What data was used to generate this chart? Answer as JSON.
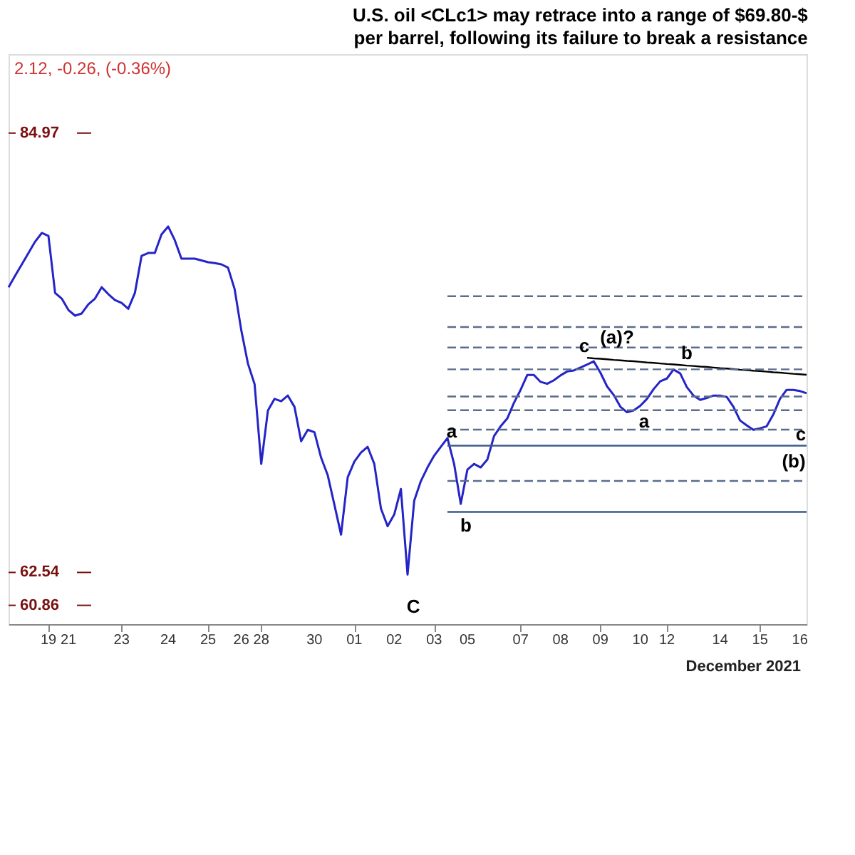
{
  "chart_data": {
    "type": "line",
    "title": "U.S. oil <CLc1> may retrace into a range of $69.80-$",
    "subtitle": "per barrel, following its failure to break a resistance",
    "ylim": [
      59.9,
      89.0
    ],
    "tick_labels": "x",
    "grid": false,
    "marker": "none",
    "categories": [
      null,
      null,
      null,
      null,
      null,
      null,
      "19",
      null,
      null,
      "21",
      null,
      null,
      null,
      null,
      null,
      null,
      null,
      "23",
      null,
      null,
      null,
      null,
      null,
      null,
      "24",
      null,
      null,
      null,
      null,
      null,
      "25",
      null,
      null,
      null,
      null,
      "26",
      null,
      null,
      "28",
      null,
      null,
      null,
      null,
      null,
      null,
      null,
      "30",
      null,
      null,
      null,
      null,
      null,
      "01",
      null,
      null,
      null,
      null,
      null,
      "02",
      null,
      null,
      null,
      null,
      null,
      "03",
      null,
      null,
      null,
      null,
      "05",
      null,
      null,
      null,
      null,
      null,
      null,
      null,
      "07",
      null,
      null,
      null,
      null,
      null,
      "08",
      null,
      null,
      null,
      null,
      null,
      "09",
      null,
      null,
      null,
      null,
      null,
      "10",
      null,
      null,
      null,
      "12",
      null,
      null,
      null,
      null,
      null,
      null,
      null,
      "14",
      null,
      null,
      null,
      null,
      null,
      "15",
      null,
      null,
      null,
      null,
      null,
      "16",
      null
    ],
    "series": [
      {
        "color": "#2424c8",
        "line_style": "solid",
        "values": [
          77.1,
          77.7,
          78.27,
          78.85,
          79.43,
          79.87,
          79.72,
          76.81,
          76.52,
          75.94,
          75.65,
          75.76,
          76.23,
          76.52,
          77.1,
          76.75,
          76.45,
          76.3,
          76.0,
          76.81,
          78.7,
          78.85,
          78.85,
          79.8,
          80.2,
          79.5,
          78.56,
          78.56,
          78.56,
          78.47,
          78.38,
          78.33,
          78.27,
          78.1,
          77.0,
          74.9,
          73.2,
          72.15,
          68.08,
          70.8,
          71.4,
          71.28,
          71.57,
          70.99,
          69.24,
          69.82,
          69.7,
          68.4,
          67.5,
          66.0,
          64.47,
          67.4,
          68.2,
          68.66,
          68.95,
          68.08,
          65.8,
          64.9,
          65.5,
          66.8,
          62.43,
          66.2,
          67.2,
          67.9,
          68.5,
          68.95,
          69.4,
          68.08,
          66.04,
          67.79,
          68.08,
          67.9,
          68.3,
          69.5,
          70.0,
          70.4,
          71.2,
          71.86,
          72.62,
          72.62,
          72.27,
          72.17,
          72.35,
          72.6,
          72.8,
          72.85,
          73.0,
          73.15,
          73.32,
          72.74,
          72.04,
          71.6,
          71.0,
          70.72,
          70.81,
          71.05,
          71.4,
          71.9,
          72.3,
          72.44,
          72.9,
          72.7,
          72.0,
          71.57,
          71.35,
          71.45,
          71.57,
          71.57,
          71.5,
          71.0,
          70.3,
          70.05,
          69.82,
          69.9,
          70.0,
          70.6,
          71.4,
          71.86,
          71.86,
          71.8,
          71.69
        ]
      },
      {
        "color": "#000000",
        "line_style": "solid",
        "values": [
          null,
          null,
          null,
          null,
          null,
          null,
          null,
          null,
          null,
          null,
          null,
          null,
          null,
          null,
          null,
          null,
          null,
          null,
          null,
          null,
          null,
          null,
          null,
          null,
          null,
          null,
          null,
          null,
          null,
          null,
          null,
          null,
          null,
          null,
          null,
          null,
          null,
          null,
          null,
          null,
          null,
          null,
          null,
          null,
          null,
          null,
          null,
          null,
          null,
          null,
          null,
          null,
          null,
          null,
          null,
          null,
          null,
          null,
          null,
          null,
          null,
          null,
          null,
          null,
          null,
          null,
          null,
          null,
          null,
          null,
          null,
          null,
          null,
          null,
          null,
          null,
          null,
          null,
          null,
          null,
          null,
          null,
          null,
          null,
          null,
          null,
          null,
          73.5,
          73.47,
          73.45,
          73.42,
          73.39,
          73.37,
          73.34,
          73.32,
          73.29,
          73.26,
          73.24,
          73.21,
          73.18,
          73.16,
          73.13,
          73.1,
          73.08,
          73.05,
          73.03,
          73.0,
          72.97,
          72.95,
          72.92,
          72.89,
          72.87,
          72.84,
          72.82,
          72.79,
          72.76,
          72.74,
          72.71,
          72.68,
          72.66,
          72.63
        ]
      },
      {
        "color": "#5a6e8c",
        "line_style": "dashed",
        "values": [
          null,
          null,
          null,
          null,
          null,
          null,
          null,
          null,
          null,
          null,
          null,
          null,
          null,
          null,
          null,
          null,
          null,
          null,
          null,
          null,
          null,
          null,
          null,
          null,
          null,
          null,
          null,
          null,
          null,
          null,
          null,
          null,
          null,
          null,
          null,
          null,
          null,
          null,
          null,
          null,
          null,
          null,
          null,
          null,
          null,
          null,
          null,
          null,
          null,
          null,
          null,
          null,
          null,
          null,
          null,
          null,
          null,
          null,
          null,
          null,
          null,
          null,
          null,
          null,
          null,
          null,
          76.64,
          76.64,
          76.64,
          76.64,
          76.64,
          76.64,
          76.64,
          76.64,
          76.64,
          76.64,
          76.64,
          76.64,
          76.64,
          76.64,
          76.64,
          76.64,
          76.64,
          76.64,
          76.64,
          76.64,
          76.64,
          76.64,
          76.64,
          76.64,
          76.64,
          76.64,
          76.64,
          76.64,
          76.64,
          76.64,
          76.64,
          76.64,
          76.64,
          76.64,
          76.64,
          76.64,
          76.64,
          76.64,
          76.64,
          76.64,
          76.64,
          76.64,
          76.64,
          76.64,
          76.64,
          76.64,
          76.64,
          76.64,
          76.64,
          76.64,
          76.64,
          76.64,
          76.64,
          76.64,
          76.64
        ]
      },
      {
        "color": "#5a6e8c",
        "line_style": "dashed",
        "values": [
          null,
          null,
          null,
          null,
          null,
          null,
          null,
          null,
          null,
          null,
          null,
          null,
          null,
          null,
          null,
          null,
          null,
          null,
          null,
          null,
          null,
          null,
          null,
          null,
          null,
          null,
          null,
          null,
          null,
          null,
          null,
          null,
          null,
          null,
          null,
          null,
          null,
          null,
          null,
          null,
          null,
          null,
          null,
          null,
          null,
          null,
          null,
          null,
          null,
          null,
          null,
          null,
          null,
          null,
          null,
          null,
          null,
          null,
          null,
          null,
          null,
          null,
          null,
          null,
          null,
          null,
          75.07,
          75.07,
          75.07,
          75.07,
          75.07,
          75.07,
          75.07,
          75.07,
          75.07,
          75.07,
          75.07,
          75.07,
          75.07,
          75.07,
          75.07,
          75.07,
          75.07,
          75.07,
          75.07,
          75.07,
          75.07,
          75.07,
          75.07,
          75.07,
          75.07,
          75.07,
          75.07,
          75.07,
          75.07,
          75.07,
          75.07,
          75.07,
          75.07,
          75.07,
          75.07,
          75.07,
          75.07,
          75.07,
          75.07,
          75.07,
          75.07,
          75.07,
          75.07,
          75.07,
          75.07,
          75.07,
          75.07,
          75.07,
          75.07,
          75.07,
          75.07,
          75.07,
          75.07,
          75.07,
          75.07
        ]
      },
      {
        "color": "#5a6e8c",
        "line_style": "dashed",
        "values": [
          null,
          null,
          null,
          null,
          null,
          null,
          null,
          null,
          null,
          null,
          null,
          null,
          null,
          null,
          null,
          null,
          null,
          null,
          null,
          null,
          null,
          null,
          null,
          null,
          null,
          null,
          null,
          null,
          null,
          null,
          null,
          null,
          null,
          null,
          null,
          null,
          null,
          null,
          null,
          null,
          null,
          null,
          null,
          null,
          null,
          null,
          null,
          null,
          null,
          null,
          null,
          null,
          null,
          null,
          null,
          null,
          null,
          null,
          null,
          null,
          null,
          null,
          null,
          null,
          null,
          null,
          74.02,
          74.02,
          74.02,
          74.02,
          74.02,
          74.02,
          74.02,
          74.02,
          74.02,
          74.02,
          74.02,
          74.02,
          74.02,
          74.02,
          74.02,
          74.02,
          74.02,
          74.02,
          74.02,
          74.02,
          74.02,
          74.02,
          74.02,
          74.02,
          74.02,
          74.02,
          74.02,
          74.02,
          74.02,
          74.02,
          74.02,
          74.02,
          74.02,
          74.02,
          74.02,
          74.02,
          74.02,
          74.02,
          74.02,
          74.02,
          74.02,
          74.02,
          74.02,
          74.02,
          74.02,
          74.02,
          74.02,
          74.02,
          74.02,
          74.02,
          74.02,
          74.02,
          74.02,
          74.02,
          74.02
        ]
      },
      {
        "color": "#5a6e8c",
        "line_style": "dashed",
        "values": [
          null,
          null,
          null,
          null,
          null,
          null,
          null,
          null,
          null,
          null,
          null,
          null,
          null,
          null,
          null,
          null,
          null,
          null,
          null,
          null,
          null,
          null,
          null,
          null,
          null,
          null,
          null,
          null,
          null,
          null,
          null,
          null,
          null,
          null,
          null,
          null,
          null,
          null,
          null,
          null,
          null,
          null,
          null,
          null,
          null,
          null,
          null,
          null,
          null,
          null,
          null,
          null,
          null,
          null,
          null,
          null,
          null,
          null,
          null,
          null,
          null,
          null,
          null,
          null,
          null,
          null,
          72.91,
          72.91,
          72.91,
          72.91,
          72.91,
          72.91,
          72.91,
          72.91,
          72.91,
          72.91,
          72.91,
          72.91,
          72.91,
          72.91,
          72.91,
          72.91,
          72.91,
          72.91,
          72.91,
          72.91,
          72.91,
          72.91,
          72.91,
          72.91,
          72.91,
          72.91,
          72.91,
          72.91,
          72.91,
          72.91,
          72.91,
          72.91,
          72.91,
          72.91,
          72.91,
          72.91,
          72.91,
          72.91,
          72.91,
          72.91,
          72.91,
          72.91,
          72.91,
          72.91,
          72.91,
          72.91,
          72.91,
          72.91,
          72.91,
          72.91,
          72.91,
          72.91,
          72.91,
          72.91,
          72.91
        ]
      },
      {
        "color": "#5a6e8c",
        "line_style": "dashed",
        "values": [
          null,
          null,
          null,
          null,
          null,
          null,
          null,
          null,
          null,
          null,
          null,
          null,
          null,
          null,
          null,
          null,
          null,
          null,
          null,
          null,
          null,
          null,
          null,
          null,
          null,
          null,
          null,
          null,
          null,
          null,
          null,
          null,
          null,
          null,
          null,
          null,
          null,
          null,
          null,
          null,
          null,
          null,
          null,
          null,
          null,
          null,
          null,
          null,
          null,
          null,
          null,
          null,
          null,
          null,
          null,
          null,
          null,
          null,
          null,
          null,
          null,
          null,
          null,
          null,
          null,
          null,
          71.52,
          71.52,
          71.52,
          71.52,
          71.52,
          71.52,
          71.52,
          71.52,
          71.52,
          71.52,
          71.52,
          71.52,
          71.52,
          71.52,
          71.52,
          71.52,
          71.52,
          71.52,
          71.52,
          71.52,
          71.52,
          71.52,
          71.52,
          71.52,
          71.52,
          71.52,
          71.52,
          71.52,
          71.52,
          71.52,
          71.52,
          71.52,
          71.52,
          71.52,
          71.52,
          71.52,
          71.52,
          71.52,
          71.52,
          71.52,
          71.52,
          71.52,
          71.52,
          71.52,
          71.52,
          71.52,
          71.52,
          71.52,
          71.52,
          71.52,
          71.52,
          71.52,
          71.52,
          71.52,
          71.52
        ]
      },
      {
        "color": "#5a6e8c",
        "line_style": "dashed",
        "values": [
          null,
          null,
          null,
          null,
          null,
          null,
          null,
          null,
          null,
          null,
          null,
          null,
          null,
          null,
          null,
          null,
          null,
          null,
          null,
          null,
          null,
          null,
          null,
          null,
          null,
          null,
          null,
          null,
          null,
          null,
          null,
          null,
          null,
          null,
          null,
          null,
          null,
          null,
          null,
          null,
          null,
          null,
          null,
          null,
          null,
          null,
          null,
          null,
          null,
          null,
          null,
          null,
          null,
          null,
          null,
          null,
          null,
          null,
          null,
          null,
          null,
          null,
          null,
          null,
          null,
          null,
          70.82,
          70.82,
          70.82,
          70.82,
          70.82,
          70.82,
          70.82,
          70.82,
          70.82,
          70.82,
          70.82,
          70.82,
          70.82,
          70.82,
          70.82,
          70.82,
          70.82,
          70.82,
          70.82,
          70.82,
          70.82,
          70.82,
          70.82,
          70.82,
          70.82,
          70.82,
          70.82,
          70.82,
          70.82,
          70.82,
          70.82,
          70.82,
          70.82,
          70.82,
          70.82,
          70.82,
          70.82,
          70.82,
          70.82,
          70.82,
          70.82,
          70.82,
          70.82,
          70.82,
          70.82,
          70.82,
          70.82,
          70.82,
          70.82,
          70.82,
          70.82,
          70.82,
          70.82,
          70.82,
          70.82
        ]
      },
      {
        "color": "#5a6e8c",
        "line_style": "dashed",
        "values": [
          null,
          null,
          null,
          null,
          null,
          null,
          null,
          null,
          null,
          null,
          null,
          null,
          null,
          null,
          null,
          null,
          null,
          null,
          null,
          null,
          null,
          null,
          null,
          null,
          null,
          null,
          null,
          null,
          null,
          null,
          null,
          null,
          null,
          null,
          null,
          null,
          null,
          null,
          null,
          null,
          null,
          null,
          null,
          null,
          null,
          null,
          null,
          null,
          null,
          null,
          null,
          null,
          null,
          null,
          null,
          null,
          null,
          null,
          null,
          null,
          null,
          null,
          null,
          null,
          null,
          null,
          69.83,
          69.83,
          69.83,
          69.83,
          69.83,
          69.83,
          69.83,
          69.83,
          69.83,
          69.83,
          69.83,
          69.83,
          69.83,
          69.83,
          69.83,
          69.83,
          69.83,
          69.83,
          69.83,
          69.83,
          69.83,
          69.83,
          69.83,
          69.83,
          69.83,
          69.83,
          69.83,
          69.83,
          69.83,
          69.83,
          69.83,
          69.83,
          69.83,
          69.83,
          69.83,
          69.83,
          69.83,
          69.83,
          69.83,
          69.83,
          69.83,
          69.83,
          69.83,
          69.83,
          69.83,
          69.83,
          69.83,
          69.83,
          69.83,
          69.83,
          69.83,
          69.83,
          69.83,
          69.83,
          69.83
        ]
      },
      {
        "color": "#3c5a8c",
        "line_style": "solid",
        "values": [
          null,
          null,
          null,
          null,
          null,
          null,
          null,
          null,
          null,
          null,
          null,
          null,
          null,
          null,
          null,
          null,
          null,
          null,
          null,
          null,
          null,
          null,
          null,
          null,
          null,
          null,
          null,
          null,
          null,
          null,
          null,
          null,
          null,
          null,
          null,
          null,
          null,
          null,
          null,
          null,
          null,
          null,
          null,
          null,
          null,
          null,
          null,
          null,
          null,
          null,
          null,
          null,
          null,
          null,
          null,
          null,
          null,
          null,
          null,
          null,
          null,
          null,
          null,
          null,
          null,
          null,
          69.01,
          69.01,
          69.01,
          69.01,
          69.01,
          69.01,
          69.01,
          69.01,
          69.01,
          69.01,
          69.01,
          69.01,
          69.01,
          69.01,
          69.01,
          69.01,
          69.01,
          69.01,
          69.01,
          69.01,
          69.01,
          69.01,
          69.01,
          69.01,
          69.01,
          69.01,
          69.01,
          69.01,
          69.01,
          69.01,
          69.01,
          69.01,
          69.01,
          69.01,
          69.01,
          69.01,
          69.01,
          69.01,
          69.01,
          69.01,
          69.01,
          69.01,
          69.01,
          69.01,
          69.01,
          69.01,
          69.01,
          69.01,
          69.01,
          69.01,
          69.01,
          69.01,
          69.01,
          69.01,
          69.01
        ]
      },
      {
        "color": "#5a6e8c",
        "line_style": "dashed",
        "values": [
          null,
          null,
          null,
          null,
          null,
          null,
          null,
          null,
          null,
          null,
          null,
          null,
          null,
          null,
          null,
          null,
          null,
          null,
          null,
          null,
          null,
          null,
          null,
          null,
          null,
          null,
          null,
          null,
          null,
          null,
          null,
          null,
          null,
          null,
          null,
          null,
          null,
          null,
          null,
          null,
          null,
          null,
          null,
          null,
          null,
          null,
          null,
          null,
          null,
          null,
          null,
          null,
          null,
          null,
          null,
          null,
          null,
          null,
          null,
          null,
          null,
          null,
          null,
          null,
          null,
          null,
          67.21,
          67.21,
          67.21,
          67.21,
          67.21,
          67.21,
          67.21,
          67.21,
          67.21,
          67.21,
          67.21,
          67.21,
          67.21,
          67.21,
          67.21,
          67.21,
          67.21,
          67.21,
          67.21,
          67.21,
          67.21,
          67.21,
          67.21,
          67.21,
          67.21,
          67.21,
          67.21,
          67.21,
          67.21,
          67.21,
          67.21,
          67.21,
          67.21,
          67.21,
          67.21,
          67.21,
          67.21,
          67.21,
          67.21,
          67.21,
          67.21,
          67.21,
          67.21,
          67.21,
          67.21,
          67.21,
          67.21,
          67.21,
          67.21,
          67.21,
          67.21,
          67.21,
          67.21,
          67.21,
          67.21
        ]
      },
      {
        "color": "#3c5a8c",
        "line_style": "solid",
        "values": [
          null,
          null,
          null,
          null,
          null,
          null,
          null,
          null,
          null,
          null,
          null,
          null,
          null,
          null,
          null,
          null,
          null,
          null,
          null,
          null,
          null,
          null,
          null,
          null,
          null,
          null,
          null,
          null,
          null,
          null,
          null,
          null,
          null,
          null,
          null,
          null,
          null,
          null,
          null,
          null,
          null,
          null,
          null,
          null,
          null,
          null,
          null,
          null,
          null,
          null,
          null,
          null,
          null,
          null,
          null,
          null,
          null,
          null,
          null,
          null,
          null,
          null,
          null,
          null,
          null,
          null,
          65.63,
          65.63,
          65.63,
          65.63,
          65.63,
          65.63,
          65.63,
          65.63,
          65.63,
          65.63,
          65.63,
          65.63,
          65.63,
          65.63,
          65.63,
          65.63,
          65.63,
          65.63,
          65.63,
          65.63,
          65.63,
          65.63,
          65.63,
          65.63,
          65.63,
          65.63,
          65.63,
          65.63,
          65.63,
          65.63,
          65.63,
          65.63,
          65.63,
          65.63,
          65.63,
          65.63,
          65.63,
          65.63,
          65.63,
          65.63,
          65.63,
          65.63,
          65.63,
          65.63,
          65.63,
          65.63,
          65.63,
          65.63,
          65.63,
          65.63,
          65.63,
          65.63,
          65.63,
          65.63,
          65.63
        ]
      }
    ],
    "ref_lines": [
      {
        "axis": "y",
        "value": 84.97,
        "label": "84.97",
        "color": "#7a1010"
      },
      {
        "axis": "y",
        "value": 62.54,
        "label": "62.54",
        "color": "#7a1010"
      },
      {
        "axis": "y",
        "value": 60.86,
        "label": "60.86",
        "color": "#7a1010"
      }
    ],
    "annotations": [
      "2.12, -0.26, (-0.36%)",
      "December 2021",
      "(a)?",
      "c",
      "b",
      "a",
      "b",
      "a",
      "c",
      "(b)",
      "C"
    ]
  }
}
